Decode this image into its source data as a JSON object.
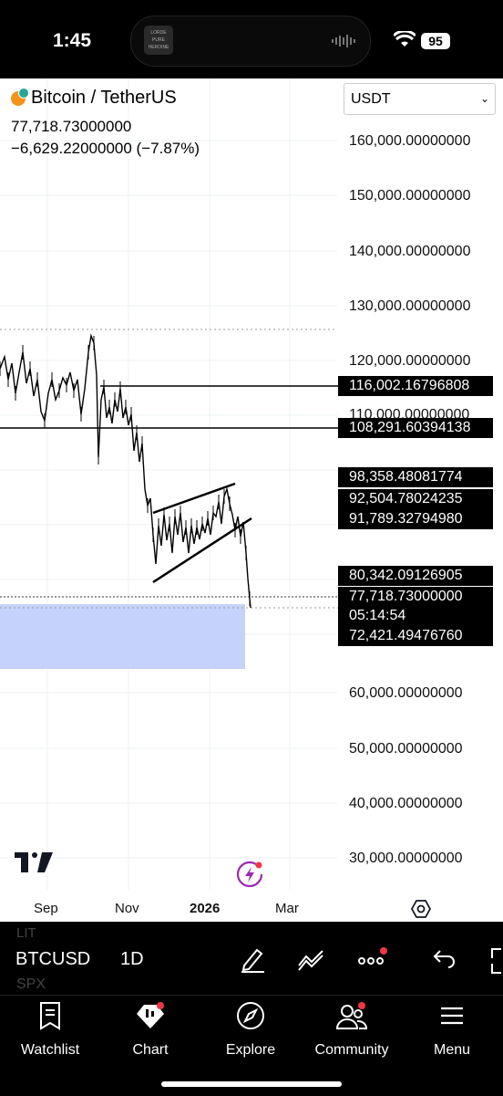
{
  "status": {
    "time": "1:45",
    "battery": "95",
    "album_art": "LORDE PURE HEROINE"
  },
  "header": {
    "pair_name": "Bitcoin / TetherUS",
    "last_price": "77,718.73000000",
    "change": "−6,629.22000000 (−7.87%)",
    "currency": "USDT"
  },
  "price_axis": [
    "160,000.00000000",
    "150,000.00000000",
    "140,000.00000000",
    "130,000.00000000",
    "120,000.00000000",
    "110,000.00000000",
    "60,000.00000000",
    "50,000.00000000",
    "40,000.00000000",
    "30,000.00000000"
  ],
  "price_tags": [
    "116,002.16796808",
    "108,291.60394138",
    "98,358.48081774",
    "92,504.78024235",
    "91,789.32794980",
    "80,342.09126905",
    "77,718.73000000",
    "05:14:54",
    "72,421.49476760"
  ],
  "time_axis": [
    "Sep",
    "Nov",
    "2026",
    "Mar"
  ],
  "toolbar": {
    "symbol": "BTCUSD",
    "timeframe": "1D",
    "ghost_top": "LIT",
    "ghost_bottom": "SPX"
  },
  "tabs": [
    "Watchlist",
    "Chart",
    "Explore",
    "Community",
    "Menu"
  ],
  "colors": {
    "accent_blue": "#2962ff",
    "range_fill": "#c5d3fb",
    "badge_red": "#f23645",
    "flash_purple": "#9c27b0"
  }
}
